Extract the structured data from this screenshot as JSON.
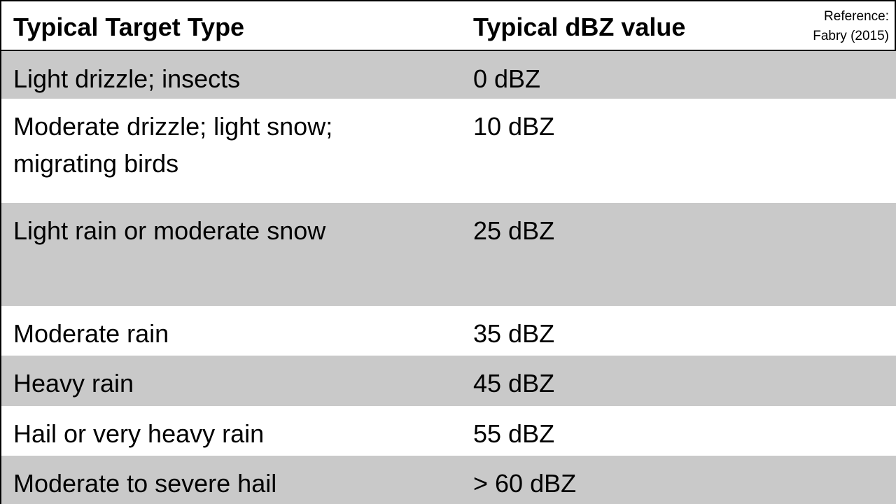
{
  "table": {
    "headers": [
      "Typical Target Type",
      "Typical dBZ value"
    ],
    "reference_line1": "Reference:",
    "reference_line2": "Fabry (2015)",
    "rows": [
      {
        "target": "Light drizzle; insects",
        "value": "0 dBZ"
      },
      {
        "target_line1": "Moderate drizzle; light snow;",
        "target_line2": "migrating birds",
        "value": "10 dBZ"
      },
      {
        "target": "Light rain or moderate snow",
        "value": "25 dBZ"
      },
      {
        "target": "Moderate rain",
        "value": "35 dBZ"
      },
      {
        "target": "Heavy rain",
        "value": "45 dBZ"
      },
      {
        "target": "Hail or very heavy rain",
        "value": "55 dBZ"
      },
      {
        "target": "Moderate to severe hail",
        "value": "> 60 dBZ"
      }
    ]
  },
  "colors": {
    "shaded_row": "#c9c9c9",
    "plain_row": "#ffffff",
    "text": "#000000",
    "border": "#000000"
  }
}
